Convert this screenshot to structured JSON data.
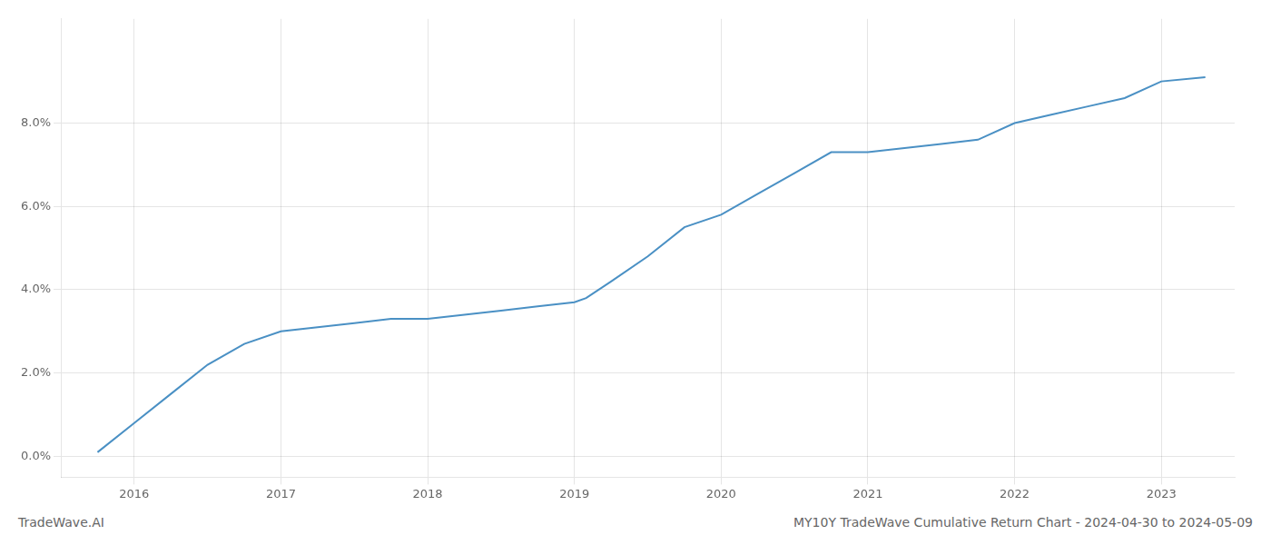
{
  "chart_data": {
    "type": "line",
    "title": "MY10Y TradeWave Cumulative Return Chart - 2024-04-30 to 2024-05-09",
    "annotations": [
      "TradeWave.AI"
    ],
    "x": [
      2015.75,
      2016.0,
      2016.25,
      2016.5,
      2016.75,
      2017.0,
      2017.25,
      2017.5,
      2017.75,
      2018.0,
      2018.25,
      2018.5,
      2018.75,
      2019.0,
      2019.08,
      2019.25,
      2019.5,
      2019.75,
      2020.0,
      2020.25,
      2020.5,
      2020.75,
      2021.0,
      2021.25,
      2021.5,
      2021.75,
      2022.0,
      2022.25,
      2022.5,
      2022.75,
      2023.0,
      2023.3
    ],
    "values": [
      0.001,
      0.008,
      0.015,
      0.022,
      0.027,
      0.03,
      0.031,
      0.032,
      0.033,
      0.033,
      0.034,
      0.035,
      0.036,
      0.037,
      0.038,
      0.042,
      0.048,
      0.055,
      0.058,
      0.063,
      0.068,
      0.073,
      0.073,
      0.074,
      0.075,
      0.076,
      0.08,
      0.082,
      0.084,
      0.086,
      0.09,
      0.091
    ],
    "color": "#4a90c4",
    "xlim": [
      2015.5,
      2023.5
    ],
    "xticks": [
      2016,
      2017,
      2018,
      2019,
      2020,
      2021,
      2022,
      2023
    ],
    "ylim": [
      -0.005,
      0.105
    ],
    "yticks": [
      {
        "value": 0.0,
        "label": "0.0%"
      },
      {
        "value": 0.02,
        "label": "2.0%"
      },
      {
        "value": 0.04,
        "label": "4.0%"
      },
      {
        "value": 0.06,
        "label": "6.0%"
      },
      {
        "value": 0.08,
        "label": "8.0%"
      }
    ],
    "grid": true
  }
}
